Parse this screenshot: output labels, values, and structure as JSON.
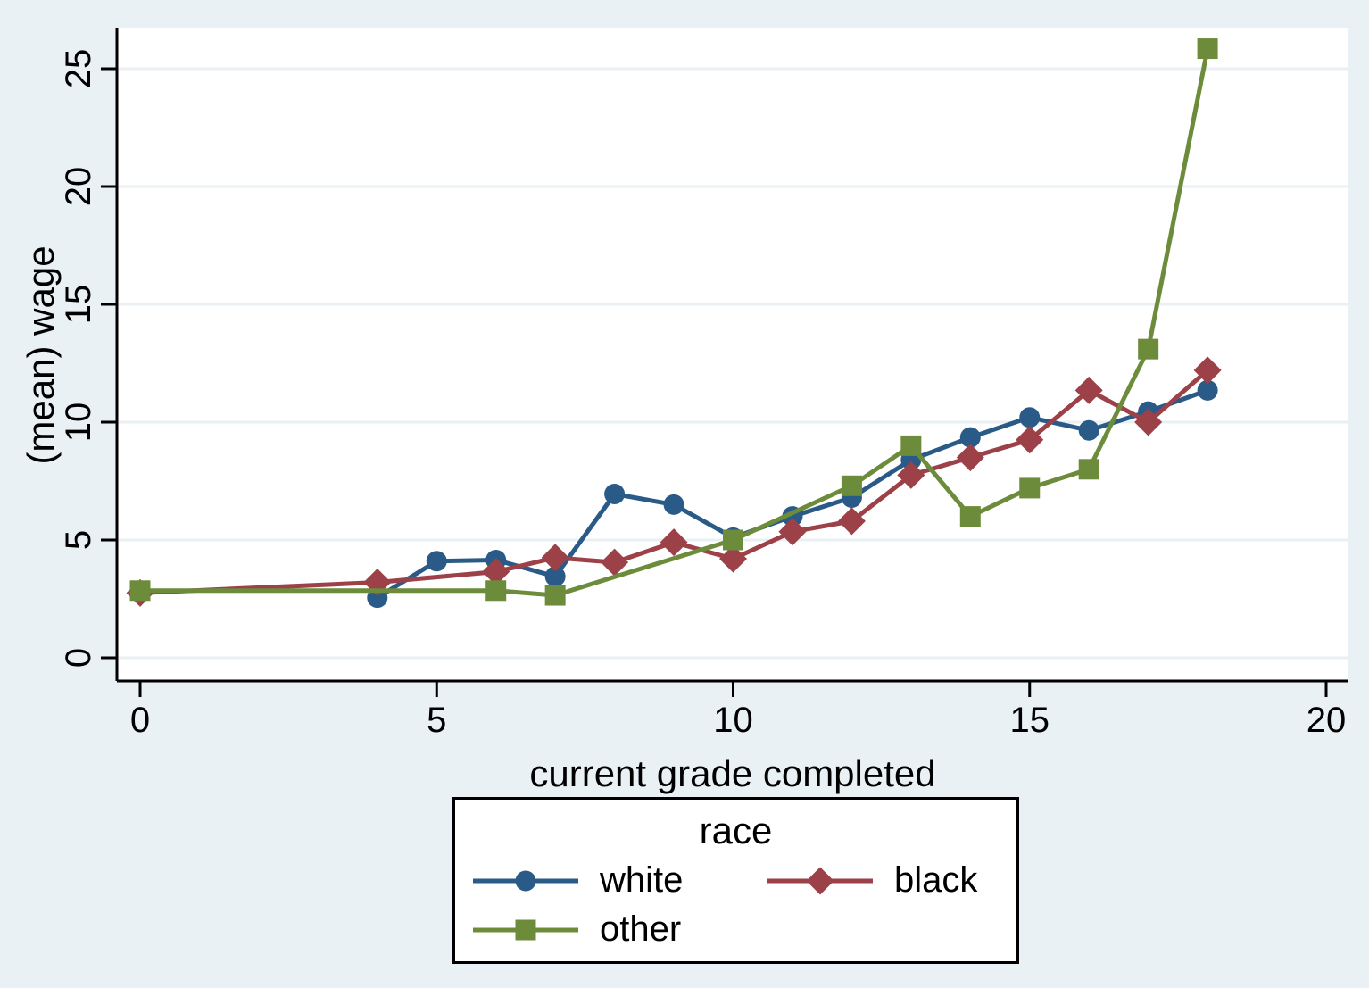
{
  "chart_data": {
    "type": "line",
    "title": "",
    "xlabel": "current grade completed",
    "ylabel": "(mean) wage",
    "xlim": [
      0,
      20
    ],
    "ylim": [
      0,
      25
    ],
    "xticks": [
      "0",
      "5",
      "10",
      "15",
      "20"
    ],
    "yticks": [
      "0",
      "5",
      "10",
      "15",
      "20",
      "25"
    ],
    "grid": "horizontal",
    "background": "#eaf1f5",
    "plot_background": "#ffffff",
    "grid_color": "#e9f0f4",
    "axis_color": "#000000",
    "legend": {
      "title": "race",
      "position": "bottom-center",
      "entries": [
        "white",
        "black",
        "other"
      ]
    },
    "series": [
      {
        "name": "white",
        "color": "#2a5a87",
        "marker": "circle",
        "points": [
          [
            4,
            2.55
          ],
          [
            5,
            4.1
          ],
          [
            6,
            4.15
          ],
          [
            7,
            3.45
          ],
          [
            8,
            6.95
          ],
          [
            9,
            6.5
          ],
          [
            10,
            5.1
          ],
          [
            11,
            6.0
          ],
          [
            12,
            6.8
          ],
          [
            13,
            8.4
          ],
          [
            14,
            9.35
          ],
          [
            15,
            10.2
          ],
          [
            16,
            9.65
          ],
          [
            17,
            10.45
          ],
          [
            18,
            11.35
          ]
        ]
      },
      {
        "name": "black",
        "color": "#9d4148",
        "marker": "diamond",
        "points": [
          [
            0,
            2.75
          ],
          [
            4,
            3.2
          ],
          [
            6,
            3.65
          ],
          [
            7,
            4.25
          ],
          [
            8,
            4.05
          ],
          [
            9,
            4.9
          ],
          [
            10,
            4.2
          ],
          [
            11,
            5.35
          ],
          [
            12,
            5.8
          ],
          [
            13,
            7.75
          ],
          [
            14,
            8.5
          ],
          [
            15,
            9.25
          ],
          [
            16,
            11.35
          ],
          [
            17,
            10.0
          ],
          [
            18,
            12.2
          ]
        ]
      },
      {
        "name": "other",
        "color": "#6d8c3b",
        "marker": "square",
        "points": [
          [
            0,
            2.85
          ],
          [
            6,
            2.85
          ],
          [
            7,
            2.65
          ],
          [
            10,
            5.0
          ],
          [
            12,
            7.3
          ],
          [
            13,
            9.0
          ],
          [
            14,
            6.0
          ],
          [
            15,
            7.2
          ],
          [
            16,
            8.0
          ],
          [
            17,
            13.1
          ],
          [
            18,
            25.85
          ]
        ]
      }
    ]
  }
}
